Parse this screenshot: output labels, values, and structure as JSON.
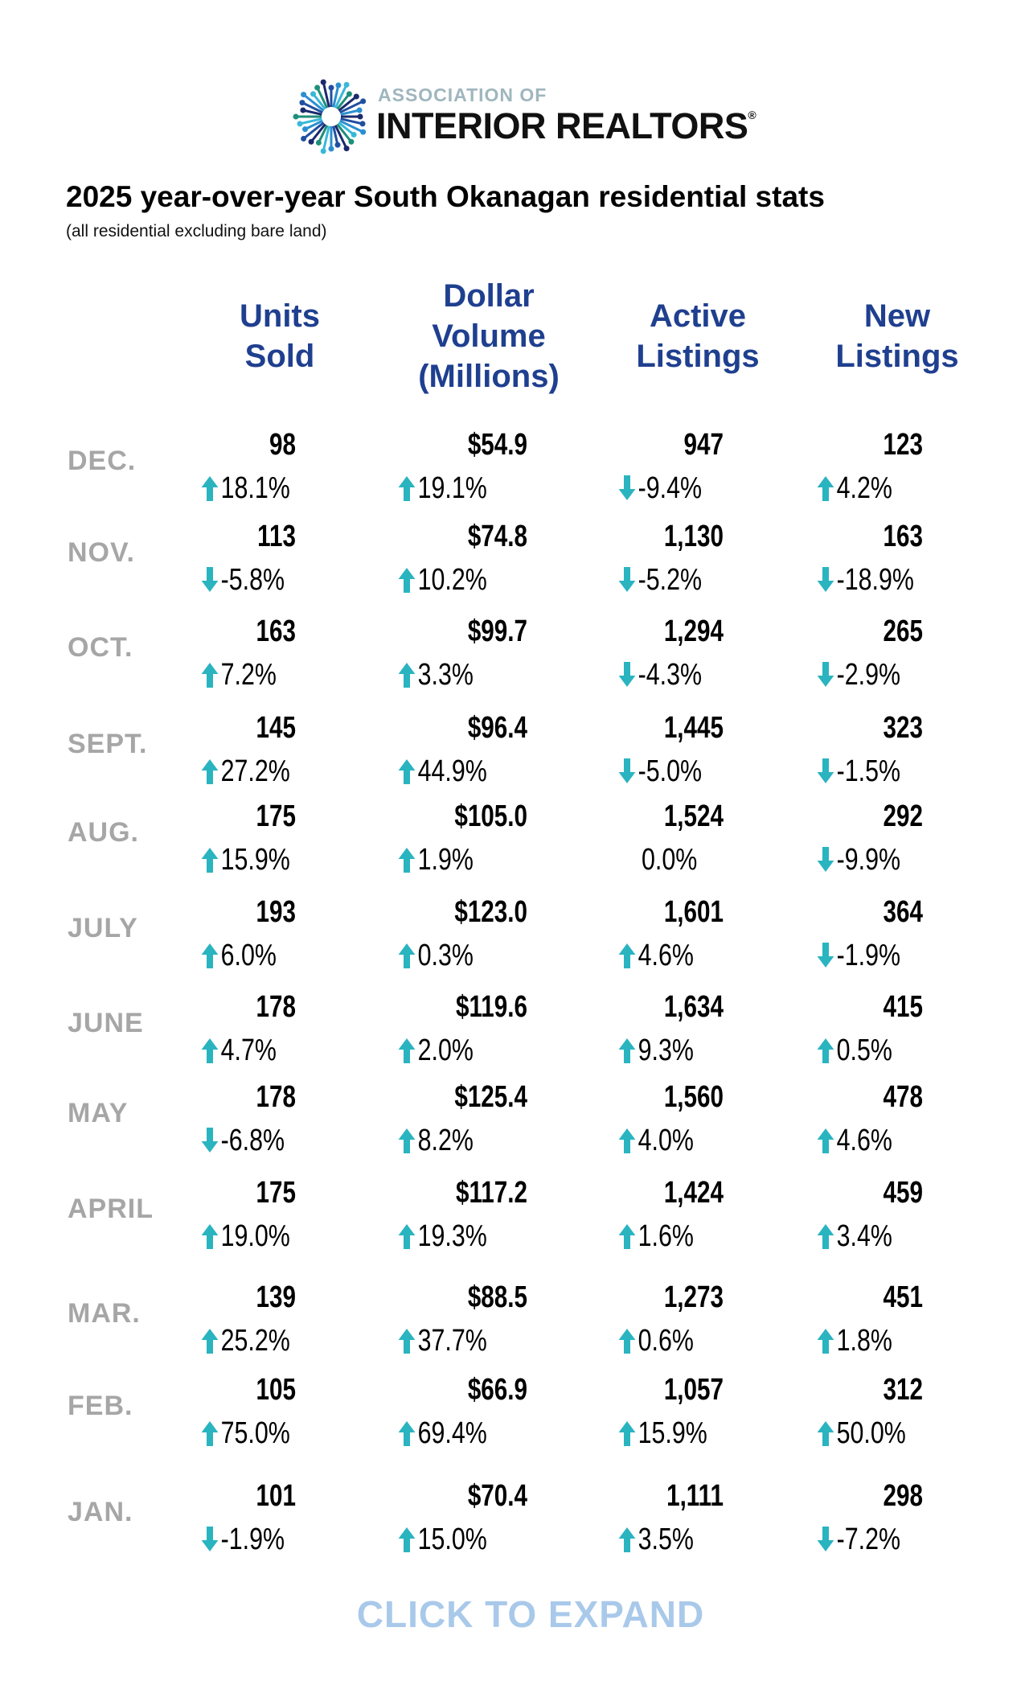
{
  "logo": {
    "line1": "ASSOCIATION OF",
    "line2": "INTERIOR REALTORS",
    "registered": "®"
  },
  "title": "2025 year-over-year South Okanagan residential stats",
  "subtitle": "(all residential excluding bare land)",
  "columns": [
    {
      "lines": [
        "Units",
        "Sold"
      ]
    },
    {
      "lines": [
        "Dollar",
        "Volume",
        "(Millions)"
      ]
    },
    {
      "lines": [
        "Active",
        "Listings"
      ]
    },
    {
      "lines": [
        "New",
        "Listings"
      ]
    }
  ],
  "colors": {
    "header": "#1f3f8f",
    "month": "#a6a6a6",
    "arrow": "#2ab4c0",
    "expand": "#a9c9ea"
  },
  "rows": [
    {
      "month": "DEC.",
      "cells": [
        {
          "v": "98",
          "p": "18.1%",
          "d": "up"
        },
        {
          "v": "$54.9",
          "p": "19.1%",
          "d": "up"
        },
        {
          "v": "947",
          "p": "-9.4%",
          "d": "down"
        },
        {
          "v": "123",
          "p": "4.2%",
          "d": "up"
        }
      ]
    },
    {
      "month": "NOV.",
      "cells": [
        {
          "v": "113",
          "p": "-5.8%",
          "d": "down"
        },
        {
          "v": "$74.8",
          "p": "10.2%",
          "d": "up"
        },
        {
          "v": "1,130",
          "p": "-5.2%",
          "d": "down"
        },
        {
          "v": "163",
          "p": "-18.9%",
          "d": "down"
        }
      ]
    },
    {
      "month": "OCT.",
      "cells": [
        {
          "v": "163",
          "p": "7.2%",
          "d": "up"
        },
        {
          "v": "$99.7",
          "p": "3.3%",
          "d": "up"
        },
        {
          "v": "1,294",
          "p": "-4.3%",
          "d": "down"
        },
        {
          "v": "265",
          "p": "-2.9%",
          "d": "down"
        }
      ]
    },
    {
      "month": "SEPT.",
      "cells": [
        {
          "v": "145",
          "p": "27.2%",
          "d": "up"
        },
        {
          "v": "$96.4",
          "p": "44.9%",
          "d": "up"
        },
        {
          "v": "1,445",
          "p": "-5.0%",
          "d": "down"
        },
        {
          "v": "323",
          "p": "-1.5%",
          "d": "down"
        }
      ]
    },
    {
      "month": "AUG.",
      "cells": [
        {
          "v": "175",
          "p": "15.9%",
          "d": "up"
        },
        {
          "v": "$105.0",
          "p": "1.9%",
          "d": "up"
        },
        {
          "v": "1,524",
          "p": "0.0%",
          "d": "none"
        },
        {
          "v": "292",
          "p": "-9.9%",
          "d": "down"
        }
      ]
    },
    {
      "month": "JULY",
      "cells": [
        {
          "v": "193",
          "p": "6.0%",
          "d": "up"
        },
        {
          "v": "$123.0",
          "p": "0.3%",
          "d": "up"
        },
        {
          "v": "1,601",
          "p": "4.6%",
          "d": "up"
        },
        {
          "v": "364",
          "p": "-1.9%",
          "d": "down"
        }
      ]
    },
    {
      "month": "JUNE",
      "cells": [
        {
          "v": "178",
          "p": "4.7%",
          "d": "up"
        },
        {
          "v": "$119.6",
          "p": "2.0%",
          "d": "up"
        },
        {
          "v": "1,634",
          "p": "9.3%",
          "d": "up"
        },
        {
          "v": "415",
          "p": "0.5%",
          "d": "up"
        }
      ]
    },
    {
      "month": "MAY",
      "cells": [
        {
          "v": "178",
          "p": "-6.8%",
          "d": "down"
        },
        {
          "v": "$125.4",
          "p": "8.2%",
          "d": "up"
        },
        {
          "v": "1,560",
          "p": "4.0%",
          "d": "up"
        },
        {
          "v": "478",
          "p": "4.6%",
          "d": "up"
        }
      ]
    },
    {
      "month": "APRIL",
      "cells": [
        {
          "v": "175",
          "p": "19.0%",
          "d": "up"
        },
        {
          "v": "$117.2",
          "p": "19.3%",
          "d": "up"
        },
        {
          "v": "1,424",
          "p": "1.6%",
          "d": "up"
        },
        {
          "v": "459",
          "p": "3.4%",
          "d": "up"
        }
      ]
    },
    {
      "month": "MAR.",
      "cells": [
        {
          "v": "139",
          "p": "25.2%",
          "d": "up"
        },
        {
          "v": "$88.5",
          "p": "37.7%",
          "d": "up"
        },
        {
          "v": "1,273",
          "p": "0.6%",
          "d": "up"
        },
        {
          "v": "451",
          "p": "1.8%",
          "d": "up"
        }
      ]
    },
    {
      "month": "FEB.",
      "cells": [
        {
          "v": "105",
          "p": "75.0%",
          "d": "up"
        },
        {
          "v": "$66.9",
          "p": "69.4%",
          "d": "up"
        },
        {
          "v": "1,057",
          "p": "15.9%",
          "d": "up"
        },
        {
          "v": "312",
          "p": "50.0%",
          "d": "up"
        }
      ]
    },
    {
      "month": "JAN.",
      "cells": [
        {
          "v": "101",
          "p": "-1.9%",
          "d": "down"
        },
        {
          "v": "$70.4",
          "p": "15.0%",
          "d": "up"
        },
        {
          "v": "1,111",
          "p": "3.5%",
          "d": "up"
        },
        {
          "v": "298",
          "p": "-7.2%",
          "d": "down"
        }
      ]
    }
  ],
  "expand_label": "CLICK TO EXPAND"
}
